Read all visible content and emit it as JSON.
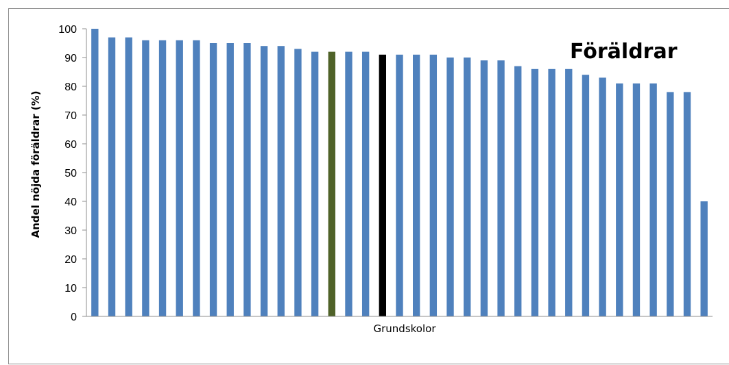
{
  "chart_data": {
    "type": "bar",
    "title": "Föräldrar",
    "xlabel": "Grundskolor",
    "ylabel": "Andel nöjda föräldrar (%)",
    "ylim": [
      0,
      100
    ],
    "yticks": [
      0,
      10,
      20,
      30,
      40,
      50,
      60,
      70,
      80,
      90,
      100
    ],
    "grid": false,
    "legend": "none",
    "values": [
      100,
      97,
      97,
      96,
      96,
      96,
      96,
      95,
      95,
      95,
      94,
      94,
      93,
      92,
      92,
      92,
      92,
      91,
      91,
      91,
      91,
      90,
      90,
      89,
      89,
      87,
      86,
      86,
      86,
      84,
      83,
      81,
      81,
      81,
      78,
      78,
      40
    ],
    "default_color": "#4f81bd",
    "highlights": [
      {
        "index": 14,
        "color": "#4f6228"
      },
      {
        "index": 17,
        "color": "#000000"
      }
    ]
  }
}
